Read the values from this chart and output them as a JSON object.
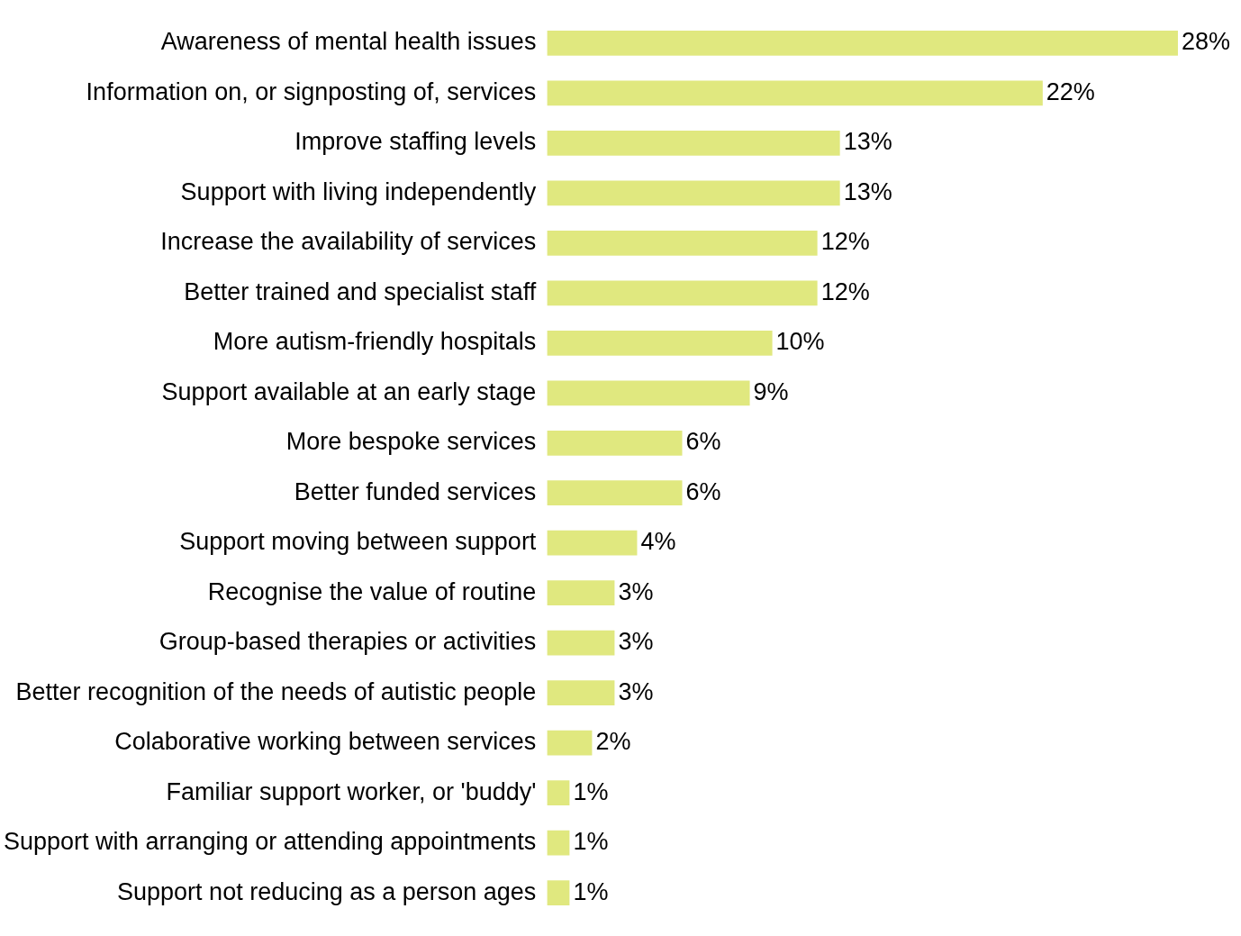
{
  "chart_data": {
    "type": "bar",
    "orientation": "horizontal",
    "categories": [
      "Awareness of mental health issues",
      "Information on, or signposting of, services",
      "Improve staffing levels",
      "Support with living independently",
      "Increase the availability of services",
      "Better trained and specialist staff",
      "More autism-friendly hospitals",
      "Support available at an early stage",
      "More bespoke services",
      "Better funded services",
      "Support moving between support",
      "Recognise the value of routine",
      "Group-based therapies or activities",
      "Better recognition of the needs of autistic people",
      "Colaborative working between services",
      "Familiar support worker, or 'buddy'",
      "Support with arranging or attending appointments",
      "Support not reducing as a person ages"
    ],
    "values": [
      28,
      22,
      13,
      13,
      12,
      12,
      10,
      9,
      6,
      6,
      4,
      3,
      3,
      3,
      2,
      1,
      1,
      1
    ],
    "value_labels": [
      "28%",
      "22%",
      "13%",
      "13%",
      "12%",
      "12%",
      "10%",
      "9%",
      "6%",
      "6%",
      "4%",
      "3%",
      "3%",
      "3%",
      "2%",
      "1%",
      "1%",
      "1%"
    ],
    "color": "#e0e87f",
    "legend": false
  }
}
